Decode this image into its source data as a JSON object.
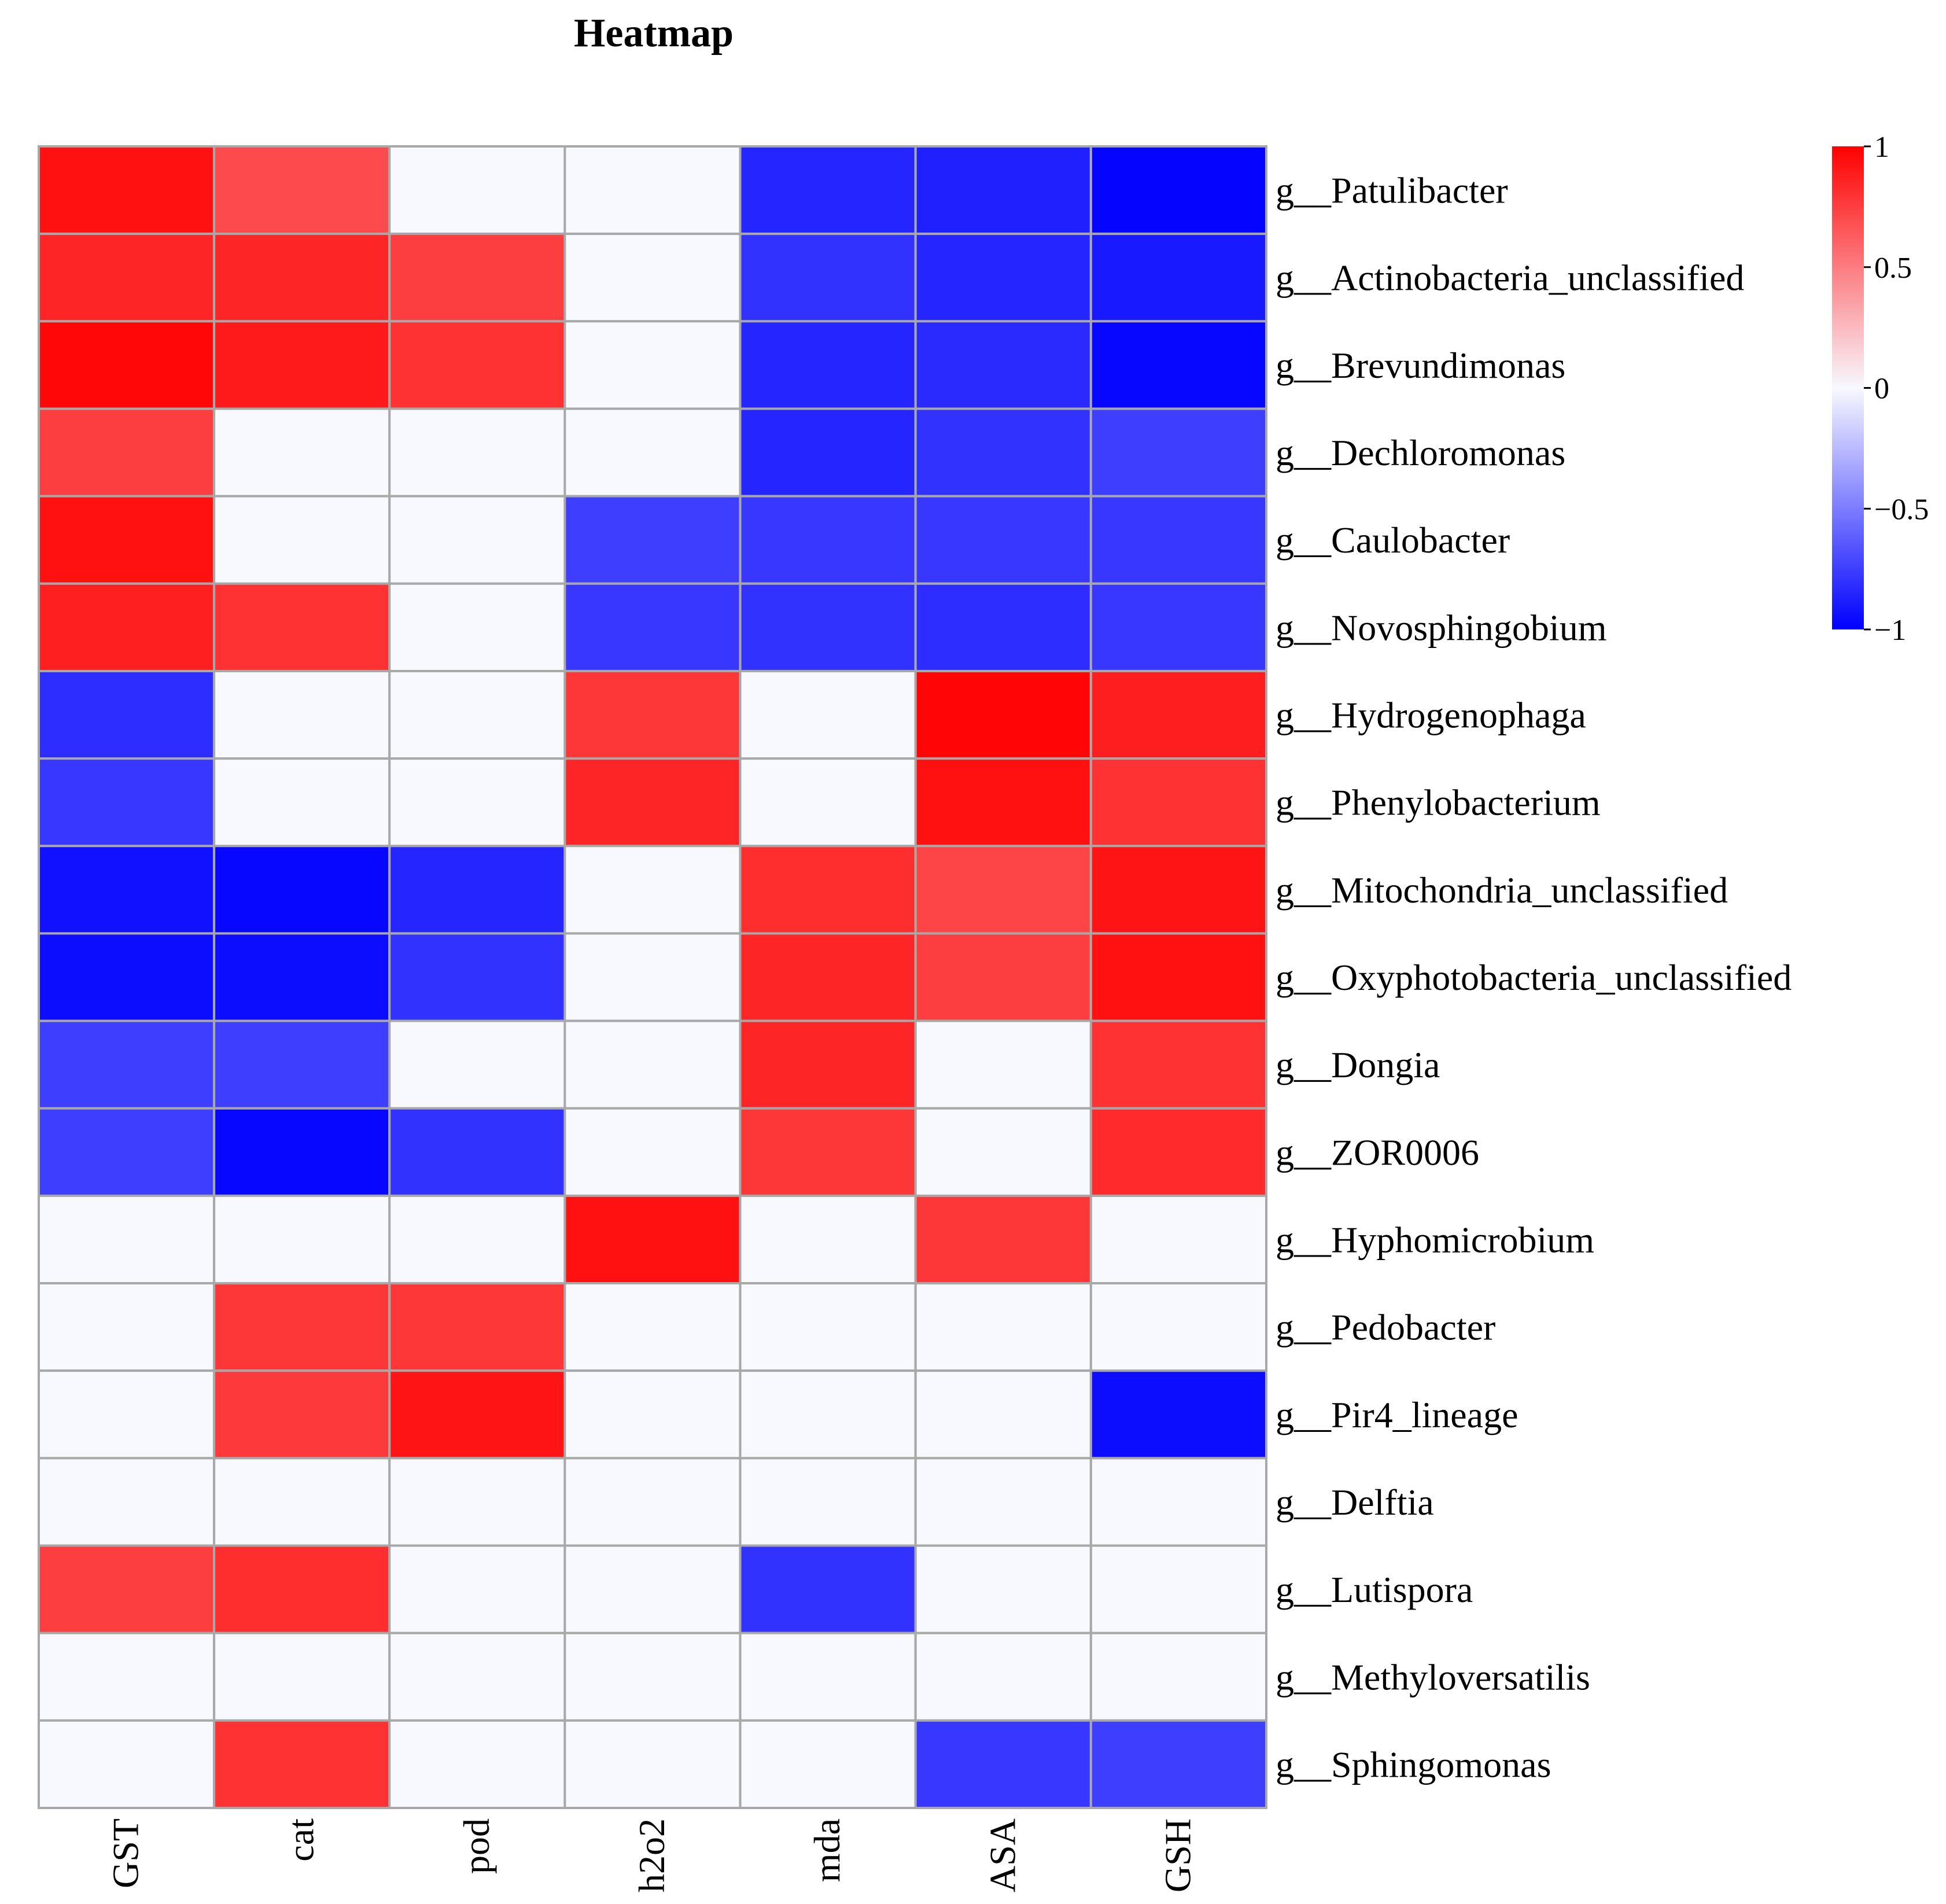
{
  "chart_data": {
    "type": "heatmap",
    "title": "Heatmap",
    "columns": [
      "GST",
      "cat",
      "pod",
      "h2o2",
      "mda",
      "ASA",
      "GSH"
    ],
    "rows": [
      "g__Patulibacter",
      "g__Actinobacteria_unclassified",
      "g__Brevundimonas",
      "g__Dechloromonas",
      "g__Caulobacter",
      "g__Novosphingobium",
      "g__Hydrogenophaga",
      "g__Phenylobacterium",
      "g__Mitochondria_unclassified",
      "g__Oxyphotobacteria_unclassified",
      "g__Dongia",
      "g__ZOR0006",
      "g__Hyphomicrobium",
      "g__Pedobacter",
      "g__Pir4_lineage",
      "g__Delftia",
      "g__Lutispora",
      "g__Methyloversatilis",
      "g__Sphingomonas"
    ],
    "values": [
      [
        0.93,
        0.7,
        0,
        0,
        -0.85,
        -0.87,
        -0.98
      ],
      [
        0.85,
        0.85,
        0.75,
        0,
        -0.8,
        -0.85,
        -0.9
      ],
      [
        0.97,
        0.9,
        0.8,
        0,
        -0.85,
        -0.83,
        -0.97
      ],
      [
        0.75,
        0,
        0,
        0,
        -0.85,
        -0.8,
        -0.75
      ],
      [
        0.93,
        0,
        0,
        -0.75,
        -0.78,
        -0.78,
        -0.78
      ],
      [
        0.87,
        0.8,
        0,
        -0.78,
        -0.8,
        -0.82,
        -0.78
      ],
      [
        -0.82,
        0,
        0,
        0.78,
        0,
        0.98,
        0.88
      ],
      [
        -0.78,
        0,
        0,
        0.85,
        0,
        0.93,
        0.8
      ],
      [
        -0.93,
        -0.97,
        -0.85,
        0,
        0.82,
        0.72,
        0.92
      ],
      [
        -0.95,
        -0.95,
        -0.8,
        0,
        0.85,
        0.75,
        0.93
      ],
      [
        -0.75,
        -0.75,
        0,
        0,
        0.85,
        0,
        0.8
      ],
      [
        -0.75,
        -0.97,
        -0.8,
        0,
        0.78,
        0,
        0.83
      ],
      [
        0,
        0,
        0,
        0.93,
        0,
        0.78,
        0
      ],
      [
        0,
        0.78,
        0.78,
        0,
        0,
        0,
        0
      ],
      [
        0,
        0.77,
        0.92,
        0,
        0,
        0,
        -0.95
      ],
      [
        0,
        0,
        0,
        0,
        0,
        0,
        0
      ],
      [
        0.75,
        0.82,
        0,
        0,
        -0.8,
        0,
        0
      ],
      [
        0,
        0,
        0,
        0,
        0,
        0,
        0
      ],
      [
        0,
        0.8,
        0,
        0,
        0,
        -0.78,
        -0.75
      ]
    ],
    "colorbar": {
      "min": -1,
      "max": 1,
      "ticks": [
        {
          "value": 1,
          "label": "1"
        },
        {
          "value": 0.5,
          "label": "0.5"
        },
        {
          "value": 0,
          "label": "0"
        },
        {
          "value": -0.5,
          "label": "−0.5"
        },
        {
          "value": -1,
          "label": "−1"
        }
      ],
      "colors": {
        "low": "#0000ff",
        "mid": "#f8f8ff",
        "high": "#ff0000"
      }
    },
    "grid_color": "#a8a8a8"
  }
}
